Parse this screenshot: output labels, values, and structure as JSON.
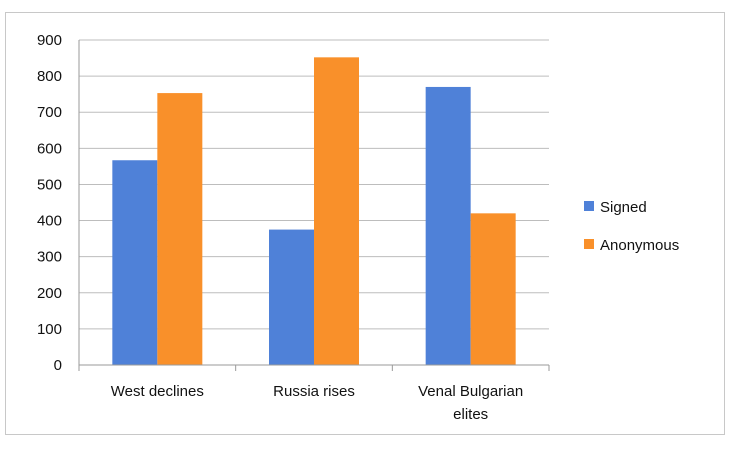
{
  "chart_data": {
    "type": "bar",
    "title": "",
    "xlabel": "",
    "ylabel": "",
    "categories": [
      [
        "West declines"
      ],
      [
        "Russia rises"
      ],
      [
        "Venal Bulgarian",
        "elites"
      ]
    ],
    "series": [
      {
        "name": "Signed",
        "color": "#4f81d8",
        "values": [
          567,
          375,
          770
        ]
      },
      {
        "name": "Anonymous",
        "color": "#f9902a",
        "values": [
          753,
          852,
          420
        ]
      }
    ],
    "ylim": [
      0,
      900
    ],
    "yticks": [
      0,
      100,
      200,
      300,
      400,
      500,
      600,
      700,
      800,
      900
    ],
    "grid": true,
    "legend": "right"
  }
}
